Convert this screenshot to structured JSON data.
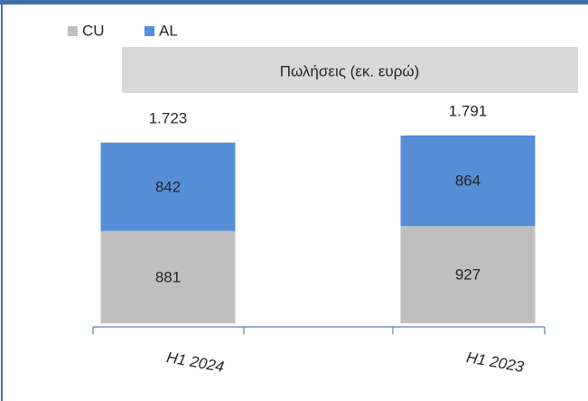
{
  "chart_data": {
    "type": "stacked_bar",
    "title": "Πωλήσεις (εκ. ευρώ)",
    "categories": [
      "H1 2024",
      "H1 2023"
    ],
    "series": [
      {
        "name": "CU",
        "color": "#bfbfbf",
        "values": [
          881,
          927
        ]
      },
      {
        "name": "AL",
        "color": "#558ed5",
        "values": [
          842,
          864
        ]
      }
    ],
    "totals": {
      "values": [
        1723,
        1791
      ],
      "value_labels": [
        "1.723",
        "1.791"
      ]
    }
  }
}
